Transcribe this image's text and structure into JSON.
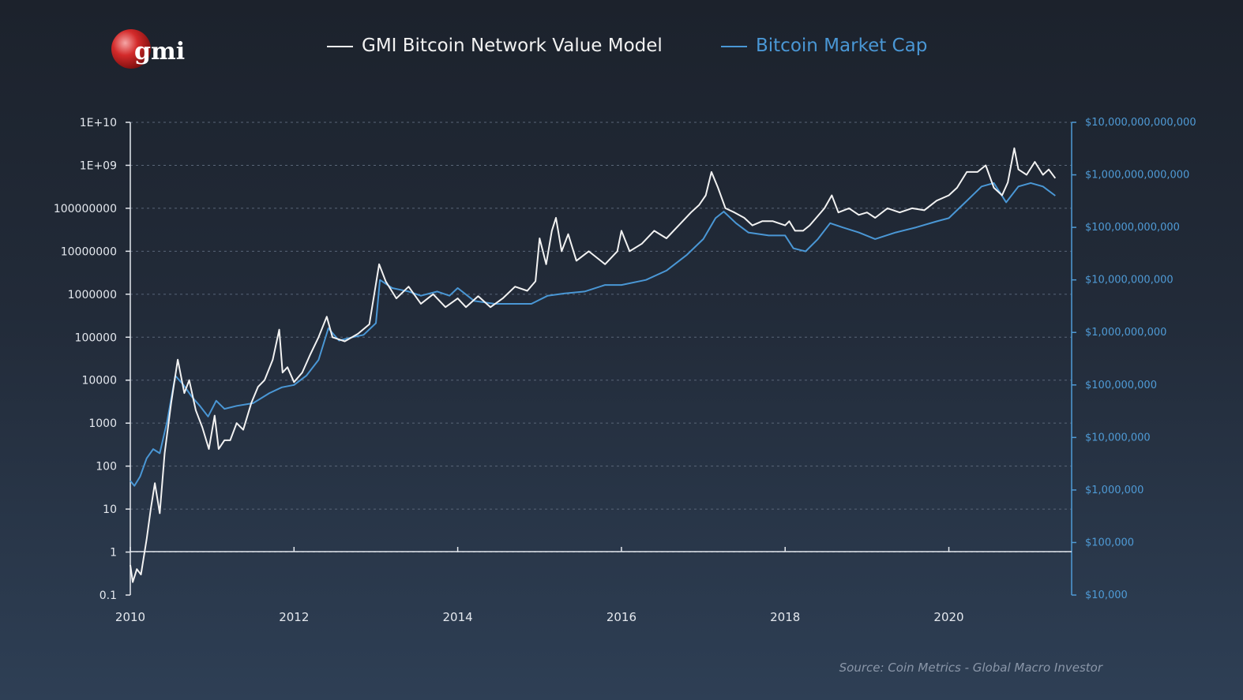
{
  "logo": {
    "text": "gmi"
  },
  "source": "Source: Coin Metrics - Global Macro Investor",
  "colors": {
    "model": "#f2f2f2",
    "market": "#4a97d5",
    "axis_left": "#e4e8ee",
    "axis_right": "#4f9bd6",
    "grid": "#5a6678",
    "background_top": "#1c222c",
    "background_bottom": "#2e3f55"
  },
  "chart_data": {
    "type": "line",
    "xlim": [
      2010,
      2021.5
    ],
    "left_axis": {
      "scale": "log",
      "ylim_exp": [
        -1,
        10
      ],
      "ticks": [
        "0.1",
        "1",
        "10",
        "100",
        "1000",
        "10000",
        "100000",
        "1000000",
        "10000000",
        "100000000",
        "1E+09",
        "1E+10"
      ]
    },
    "right_axis": {
      "scale": "log",
      "ylim_exp": [
        4,
        13
      ],
      "ticks": [
        "$10,000",
        "$100,000",
        "$1,000,000",
        "$10,000,000",
        "$100,000,000",
        "$1,000,000,000",
        "$10,000,000,000",
        "$100,000,000,000",
        "$1,000,000,000,000",
        "$10,000,000,000,000"
      ]
    },
    "x_ticks": [
      "2010",
      "2012",
      "2014",
      "2016",
      "2018",
      "2020"
    ],
    "grid": true,
    "legend_position": "top",
    "series": [
      {
        "name": "GMI Bitcoin Network Value Model",
        "axis": "left",
        "points": [
          [
            2010.0,
            0.5
          ],
          [
            2010.03,
            0.2
          ],
          [
            2010.08,
            0.4
          ],
          [
            2010.13,
            0.3
          ],
          [
            2010.2,
            2
          ],
          [
            2010.25,
            10
          ],
          [
            2010.3,
            40
          ],
          [
            2010.36,
            8
          ],
          [
            2010.42,
            200
          ],
          [
            2010.5,
            3000
          ],
          [
            2010.58,
            30000
          ],
          [
            2010.66,
            5000
          ],
          [
            2010.72,
            10000
          ],
          [
            2010.8,
            2000
          ],
          [
            2010.88,
            800
          ],
          [
            2010.96,
            250
          ],
          [
            2011.03,
            1500
          ],
          [
            2011.08,
            250
          ],
          [
            2011.15,
            400
          ],
          [
            2011.22,
            400
          ],
          [
            2011.3,
            1000
          ],
          [
            2011.38,
            700
          ],
          [
            2011.48,
            3000
          ],
          [
            2011.56,
            7000
          ],
          [
            2011.64,
            10000
          ],
          [
            2011.74,
            30000
          ],
          [
            2011.82,
            150000
          ],
          [
            2011.86,
            15000
          ],
          [
            2011.92,
            20000
          ],
          [
            2012.0,
            9000
          ],
          [
            2012.1,
            15000
          ],
          [
            2012.2,
            40000
          ],
          [
            2012.3,
            100000
          ],
          [
            2012.4,
            300000
          ],
          [
            2012.47,
            100000
          ],
          [
            2012.62,
            80000
          ],
          [
            2012.78,
            120000
          ],
          [
            2012.92,
            200000
          ],
          [
            2013.04,
            5000000
          ],
          [
            2013.12,
            2000000
          ],
          [
            2013.25,
            800000
          ],
          [
            2013.4,
            1500000
          ],
          [
            2013.55,
            600000
          ],
          [
            2013.7,
            1000000
          ],
          [
            2013.85,
            500000
          ],
          [
            2014.0,
            800000
          ],
          [
            2014.1,
            500000
          ],
          [
            2014.25,
            900000
          ],
          [
            2014.4,
            500000
          ],
          [
            2014.55,
            800000
          ],
          [
            2014.7,
            1500000
          ],
          [
            2014.85,
            1200000
          ],
          [
            2014.95,
            2000000
          ],
          [
            2015.0,
            20000000
          ],
          [
            2015.08,
            5000000
          ],
          [
            2015.15,
            30000000
          ],
          [
            2015.2,
            60000000
          ],
          [
            2015.27,
            10000000
          ],
          [
            2015.35,
            25000000
          ],
          [
            2015.45,
            6000000
          ],
          [
            2015.6,
            10000000
          ],
          [
            2015.8,
            5000000
          ],
          [
            2015.95,
            10000000
          ],
          [
            2016.0,
            30000000
          ],
          [
            2016.1,
            10000000
          ],
          [
            2016.25,
            15000000
          ],
          [
            2016.4,
            30000000
          ],
          [
            2016.55,
            20000000
          ],
          [
            2016.7,
            40000000
          ],
          [
            2016.85,
            80000000
          ],
          [
            2016.95,
            120000000
          ],
          [
            2017.03,
            200000000
          ],
          [
            2017.1,
            700000000
          ],
          [
            2017.18,
            300000000
          ],
          [
            2017.27,
            100000000
          ],
          [
            2017.38,
            80000000
          ],
          [
            2017.5,
            60000000
          ],
          [
            2017.6,
            40000000
          ],
          [
            2017.72,
            50000000
          ],
          [
            2017.85,
            50000000
          ],
          [
            2018.0,
            40000000
          ],
          [
            2018.05,
            50000000
          ],
          [
            2018.12,
            30000000
          ],
          [
            2018.22,
            30000000
          ],
          [
            2018.3,
            40000000
          ],
          [
            2018.38,
            60000000
          ],
          [
            2018.48,
            100000000
          ],
          [
            2018.57,
            200000000
          ],
          [
            2018.65,
            80000000
          ],
          [
            2018.78,
            100000000
          ],
          [
            2018.9,
            70000000
          ],
          [
            2019.0,
            80000000
          ],
          [
            2019.1,
            60000000
          ],
          [
            2019.25,
            100000000
          ],
          [
            2019.4,
            80000000
          ],
          [
            2019.55,
            100000000
          ],
          [
            2019.7,
            90000000
          ],
          [
            2019.85,
            150000000
          ],
          [
            2020.0,
            200000000
          ],
          [
            2020.1,
            300000000
          ],
          [
            2020.22,
            700000000
          ],
          [
            2020.35,
            700000000
          ],
          [
            2020.45,
            1000000000
          ],
          [
            2020.55,
            300000000
          ],
          [
            2020.65,
            200000000
          ],
          [
            2020.72,
            400000000
          ],
          [
            2020.8,
            2500000000
          ],
          [
            2020.85,
            800000000
          ],
          [
            2020.95,
            600000000
          ],
          [
            2021.05,
            1200000000
          ],
          [
            2021.15,
            600000000
          ],
          [
            2021.22,
            800000000
          ],
          [
            2021.3,
            500000000
          ]
        ]
      },
      {
        "name": "Bitcoin Market Cap",
        "axis": "right",
        "points": [
          [
            2010.0,
            1500000
          ],
          [
            2010.05,
            1200000
          ],
          [
            2010.12,
            1800000
          ],
          [
            2010.2,
            4000000
          ],
          [
            2010.28,
            6000000
          ],
          [
            2010.36,
            5000000
          ],
          [
            2010.45,
            20000000
          ],
          [
            2010.55,
            150000000
          ],
          [
            2010.65,
            100000000
          ],
          [
            2010.75,
            60000000
          ],
          [
            2010.85,
            40000000
          ],
          [
            2010.95,
            25000000
          ],
          [
            2011.05,
            50000000
          ],
          [
            2011.15,
            35000000
          ],
          [
            2011.3,
            40000000
          ],
          [
            2011.5,
            45000000
          ],
          [
            2011.7,
            70000000
          ],
          [
            2011.85,
            90000000
          ],
          [
            2012.0,
            100000000
          ],
          [
            2012.15,
            150000000
          ],
          [
            2012.3,
            300000000
          ],
          [
            2012.42,
            1200000000
          ],
          [
            2012.55,
            700000000
          ],
          [
            2012.7,
            800000000
          ],
          [
            2012.85,
            900000000
          ],
          [
            2013.0,
            1500000000
          ],
          [
            2013.05,
            10000000000
          ],
          [
            2013.2,
            7000000000
          ],
          [
            2013.4,
            6000000000
          ],
          [
            2013.55,
            5000000000
          ],
          [
            2013.75,
            6000000000
          ],
          [
            2013.9,
            5000000000
          ],
          [
            2014.0,
            7000000000
          ],
          [
            2014.2,
            4000000000
          ],
          [
            2014.45,
            3500000000
          ],
          [
            2014.7,
            3500000000
          ],
          [
            2014.9,
            3500000000
          ],
          [
            2015.1,
            5000000000
          ],
          [
            2015.3,
            5500000000
          ],
          [
            2015.55,
            6000000000
          ],
          [
            2015.8,
            8000000000
          ],
          [
            2016.0,
            8000000000
          ],
          [
            2016.3,
            10000000000
          ],
          [
            2016.55,
            15000000000
          ],
          [
            2016.8,
            30000000000
          ],
          [
            2017.0,
            60000000000
          ],
          [
            2017.15,
            150000000000
          ],
          [
            2017.25,
            200000000000
          ],
          [
            2017.4,
            120000000000
          ],
          [
            2017.55,
            80000000000
          ],
          [
            2017.8,
            70000000000
          ],
          [
            2018.0,
            70000000000
          ],
          [
            2018.1,
            40000000000
          ],
          [
            2018.25,
            35000000000
          ],
          [
            2018.4,
            60000000000
          ],
          [
            2018.55,
            120000000000
          ],
          [
            2018.7,
            100000000000
          ],
          [
            2018.9,
            80000000000
          ],
          [
            2019.1,
            60000000000
          ],
          [
            2019.35,
            80000000000
          ],
          [
            2019.6,
            100000000000
          ],
          [
            2019.85,
            130000000000
          ],
          [
            2020.0,
            150000000000
          ],
          [
            2020.2,
            300000000000
          ],
          [
            2020.4,
            600000000000
          ],
          [
            2020.55,
            700000000000
          ],
          [
            2020.7,
            300000000000
          ],
          [
            2020.85,
            600000000000
          ],
          [
            2021.0,
            700000000000
          ],
          [
            2021.15,
            600000000000
          ],
          [
            2021.3,
            400000000000
          ]
        ]
      }
    ]
  }
}
